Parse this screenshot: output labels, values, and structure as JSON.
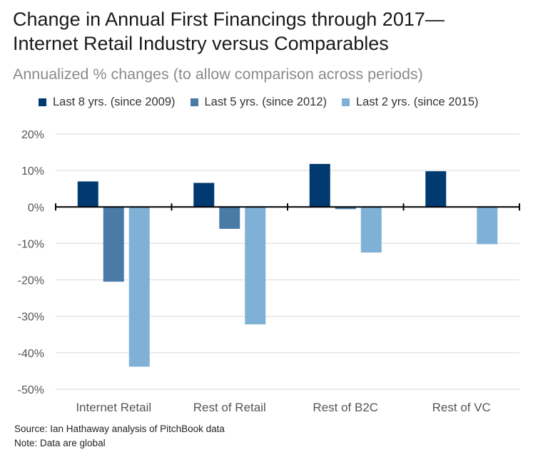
{
  "title_line1": "Change in Annual First Financings through 2017—",
  "title_line2": "Internet Retail Industry versus Comparables",
  "subtitle": "Annualized % changes (to allow comparison across periods)",
  "source": "Source: Ian Hathaway analysis of PitchBook data",
  "note": "Note: Data are global",
  "chart_data": {
    "type": "bar",
    "title": "Change in Annual First Financings through 2017—Internet Retail Industry versus Comparables",
    "subtitle": "Annualized % changes (to allow comparison across periods)",
    "categories": [
      "Internet Retail",
      "Rest of Retail",
      "Rest of B2C",
      "Rest of VC"
    ],
    "series": [
      {
        "name": "Last 8 yrs. (since 2009)",
        "color": "#003a70",
        "values": [
          7.0,
          6.6,
          11.8,
          9.8
        ]
      },
      {
        "name": "Last 5 yrs. (since 2012)",
        "color": "#4a7ba7",
        "values": [
          -20.5,
          -6.0,
          -0.6,
          0
        ]
      },
      {
        "name": "Last 2 yrs. (since 2015)",
        "color": "#7fb1d6",
        "values": [
          -43.8,
          -32.2,
          -12.5,
          -10.2
        ]
      }
    ],
    "yticks": [
      20,
      10,
      0,
      -10,
      -20,
      -30,
      -40,
      -50
    ],
    "ytick_labels": [
      "20%",
      "10%",
      "0%",
      "-10%",
      "-20%",
      "-30%",
      "-40%",
      "-50%"
    ],
    "ylim": [
      -50,
      20
    ],
    "xlabel": "",
    "ylabel": "",
    "grid": true,
    "legend": "top"
  }
}
